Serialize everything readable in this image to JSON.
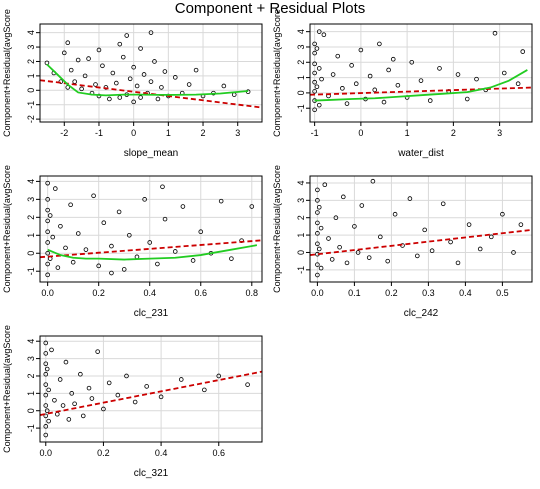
{
  "page": {
    "title": "Component + Residual Plots"
  },
  "style": {
    "background": "#ffffff",
    "panel_background": "#ffffff",
    "grid_color": "#d9d9d9",
    "point_color": "#000000",
    "fit_line_color": "#cc0000",
    "smooth_line_color": "#22cc22"
  },
  "chart_data": [
    {
      "type": "scatter",
      "xlabel": "slope_mean",
      "ylabel": "Component+Residual(avgScore",
      "xlim": [
        -2.7,
        3.7
      ],
      "ylim": [
        -2.2,
        4.6
      ],
      "xticks": [
        -2,
        -1,
        0,
        1,
        2,
        3
      ],
      "yticks": [
        -2,
        -1,
        0,
        1,
        2,
        3,
        4
      ],
      "grid": true,
      "fit_line": {
        "x": [
          -2.7,
          3.7
        ],
        "y": [
          0.7,
          -1.2
        ]
      },
      "smooth_line": {
        "x": [
          -2.5,
          -2.2,
          -1.9,
          -1.6,
          -1.2,
          -0.8,
          -0.3,
          0.2,
          0.7,
          1.2,
          1.8,
          2.5,
          3.3
        ],
        "y": [
          1.8,
          1.1,
          0.4,
          -0.15,
          -0.3,
          -0.35,
          -0.3,
          -0.3,
          -0.32,
          -0.32,
          -0.3,
          -0.22,
          -0.05
        ]
      },
      "points": [
        [
          -2.5,
          1.9
        ],
        [
          -2.3,
          1.2
        ],
        [
          -2.1,
          0.6
        ],
        [
          -2.0,
          2.6
        ],
        [
          -1.9,
          3.3
        ],
        [
          -1.9,
          0.2
        ],
        [
          -1.8,
          1.4
        ],
        [
          -1.7,
          0.6
        ],
        [
          -1.6,
          2.1
        ],
        [
          -1.5,
          0.1
        ],
        [
          -1.4,
          1.0
        ],
        [
          -1.2,
          -0.2
        ],
        [
          -1.1,
          0.4
        ],
        [
          -1.0,
          2.8
        ],
        [
          -1.0,
          -0.4
        ],
        [
          -0.9,
          1.7
        ],
        [
          -0.8,
          0.2
        ],
        [
          -0.7,
          -0.6
        ],
        [
          -0.6,
          1.2
        ],
        [
          -0.5,
          0.5
        ],
        [
          -0.4,
          -0.5
        ],
        [
          -0.3,
          2.3
        ],
        [
          -0.2,
          3.8
        ],
        [
          -0.2,
          -0.3
        ],
        [
          -0.1,
          0.8
        ],
        [
          0.0,
          1.6
        ],
        [
          0.0,
          -0.8
        ],
        [
          0.1,
          0.3
        ],
        [
          0.2,
          2.9
        ],
        [
          0.2,
          -0.5
        ],
        [
          0.3,
          1.1
        ],
        [
          0.4,
          -0.2
        ],
        [
          0.5,
          0.6
        ],
        [
          0.6,
          2.0
        ],
        [
          0.7,
          -0.6
        ],
        [
          0.8,
          0.2
        ],
        [
          0.9,
          1.3
        ],
        [
          1.0,
          -0.4
        ],
        [
          1.2,
          0.9
        ],
        [
          1.4,
          -0.2
        ],
        [
          1.6,
          0.4
        ],
        [
          1.8,
          1.4
        ],
        [
          2.0,
          -0.4
        ],
        [
          2.3,
          -0.2
        ],
        [
          2.6,
          0.3
        ],
        [
          2.9,
          -0.3
        ],
        [
          3.3,
          -0.1
        ],
        [
          -1.3,
          2.2
        ],
        [
          0.5,
          4.0
        ],
        [
          -0.4,
          3.2
        ]
      ]
    },
    {
      "type": "scatter",
      "xlabel": "water_dist",
      "ylabel": "Component+Residual(avgScore",
      "xlim": [
        -1.1,
        3.7
      ],
      "ylim": [
        -1.9,
        4.5
      ],
      "xticks": [
        -1,
        0,
        1,
        2,
        3
      ],
      "yticks": [
        -1,
        0,
        1,
        2,
        3,
        4
      ],
      "grid": true,
      "fit_line": {
        "x": [
          -1.1,
          3.7
        ],
        "y": [
          -0.12,
          0.35
        ]
      },
      "smooth_line": {
        "x": [
          -1.0,
          -0.6,
          -0.2,
          0.3,
          0.8,
          1.3,
          1.8,
          2.3,
          2.8,
          3.2,
          3.6
        ],
        "y": [
          -0.5,
          -0.45,
          -0.4,
          -0.35,
          -0.25,
          -0.15,
          -0.05,
          0.05,
          0.35,
          0.8,
          1.5
        ]
      },
      "points": [
        [
          -1.0,
          3.2
        ],
        [
          -1.0,
          2.6
        ],
        [
          -1.0,
          1.9
        ],
        [
          -1.0,
          1.3
        ],
        [
          -1.0,
          0.7
        ],
        [
          -1.0,
          0.1
        ],
        [
          -1.0,
          -0.5
        ],
        [
          -1.0,
          -1.1
        ],
        [
          -0.95,
          2.9
        ],
        [
          -0.95,
          0.4
        ],
        [
          -0.9,
          1.6
        ],
        [
          -0.9,
          -0.8
        ],
        [
          -0.85,
          0.9
        ],
        [
          -0.8,
          3.8
        ],
        [
          -0.7,
          -0.2
        ],
        [
          -0.6,
          1.2
        ],
        [
          -0.5,
          2.4
        ],
        [
          -0.4,
          0.3
        ],
        [
          -0.3,
          -0.7
        ],
        [
          -0.2,
          1.8
        ],
        [
          -0.1,
          0.6
        ],
        [
          0.0,
          2.8
        ],
        [
          0.1,
          -0.4
        ],
        [
          0.2,
          1.1
        ],
        [
          0.3,
          0.2
        ],
        [
          0.4,
          3.2
        ],
        [
          0.5,
          -0.6
        ],
        [
          0.6,
          1.5
        ],
        [
          0.8,
          0.5
        ],
        [
          1.0,
          -0.3
        ],
        [
          1.1,
          2.0
        ],
        [
          1.3,
          0.8
        ],
        [
          1.5,
          -0.5
        ],
        [
          1.7,
          1.6
        ],
        [
          1.9,
          0.1
        ],
        [
          2.1,
          1.2
        ],
        [
          2.3,
          -0.4
        ],
        [
          2.5,
          0.9
        ],
        [
          2.7,
          0.2
        ],
        [
          2.9,
          3.9
        ],
        [
          3.1,
          1.3
        ],
        [
          3.4,
          0.6
        ],
        [
          3.5,
          2.7
        ],
        [
          -0.9,
          4.0
        ],
        [
          0.7,
          2.2
        ]
      ]
    },
    {
      "type": "scatter",
      "xlabel": "clc_231",
      "ylabel": "Component+Residual(avgScore",
      "xlim": [
        -0.03,
        0.84
      ],
      "ylim": [
        -1.6,
        4.3
      ],
      "xticks": [
        0.0,
        0.2,
        0.4,
        0.6,
        0.8
      ],
      "yticks": [
        -1,
        0,
        1,
        2,
        3,
        4
      ],
      "grid": true,
      "fit_line": {
        "x": [
          -0.03,
          0.84
        ],
        "y": [
          -0.22,
          0.72
        ]
      },
      "smooth_line": {
        "x": [
          0.0,
          0.05,
          0.1,
          0.15,
          0.2,
          0.3,
          0.4,
          0.5,
          0.6,
          0.7,
          0.82
        ],
        "y": [
          0.2,
          -0.1,
          -0.25,
          -0.3,
          -0.3,
          -0.35,
          -0.3,
          -0.25,
          -0.1,
          0.15,
          0.45
        ]
      },
      "points": [
        [
          0.0,
          3.9
        ],
        [
          0.0,
          3.0
        ],
        [
          0.0,
          2.4
        ],
        [
          0.0,
          1.8
        ],
        [
          0.0,
          1.2
        ],
        [
          0.0,
          0.6
        ],
        [
          0.0,
          0.0
        ],
        [
          0.0,
          -0.6
        ],
        [
          0.0,
          -1.2
        ],
        [
          0.01,
          2.1
        ],
        [
          0.01,
          -0.3
        ],
        [
          0.02,
          0.9
        ],
        [
          0.03,
          3.6
        ],
        [
          0.04,
          -0.8
        ],
        [
          0.05,
          1.5
        ],
        [
          0.07,
          0.3
        ],
        [
          0.09,
          2.7
        ],
        [
          0.1,
          -0.5
        ],
        [
          0.12,
          1.1
        ],
        [
          0.15,
          0.2
        ],
        [
          0.18,
          3.2
        ],
        [
          0.2,
          -0.7
        ],
        [
          0.22,
          1.7
        ],
        [
          0.25,
          0.4
        ],
        [
          0.28,
          2.3
        ],
        [
          0.3,
          -0.9
        ],
        [
          0.32,
          1.0
        ],
        [
          0.35,
          -0.2
        ],
        [
          0.38,
          3.0
        ],
        [
          0.4,
          0.6
        ],
        [
          0.43,
          -0.6
        ],
        [
          0.46,
          1.9
        ],
        [
          0.5,
          0.1
        ],
        [
          0.53,
          2.6
        ],
        [
          0.57,
          -0.4
        ],
        [
          0.6,
          1.2
        ],
        [
          0.64,
          0.0
        ],
        [
          0.68,
          2.9
        ],
        [
          0.72,
          -0.3
        ],
        [
          0.76,
          0.7
        ],
        [
          0.8,
          2.6
        ],
        [
          0.45,
          3.7
        ],
        [
          0.25,
          -1.1
        ]
      ]
    },
    {
      "type": "scatter",
      "xlabel": "clc_242",
      "ylabel": "Component+Residual(avgScore",
      "xlim": [
        -0.02,
        0.58
      ],
      "ylim": [
        -1.7,
        4.4
      ],
      "xticks": [
        0.0,
        0.1,
        0.2,
        0.3,
        0.4,
        0.5
      ],
      "yticks": [
        -1,
        0,
        1,
        2,
        3,
        4
      ],
      "grid": true,
      "fit_line": {
        "x": [
          -0.02,
          0.58
        ],
        "y": [
          -0.15,
          1.3
        ]
      },
      "smooth_line": null,
      "points": [
        [
          0.0,
          3.6
        ],
        [
          0.0,
          3.0
        ],
        [
          0.0,
          2.3
        ],
        [
          0.0,
          1.7
        ],
        [
          0.0,
          1.1
        ],
        [
          0.0,
          0.5
        ],
        [
          0.0,
          -0.1
        ],
        [
          0.0,
          -0.7
        ],
        [
          0.0,
          -1.3
        ],
        [
          0.005,
          2.6
        ],
        [
          0.005,
          0.2
        ],
        [
          0.01,
          1.4
        ],
        [
          0.01,
          -0.9
        ],
        [
          0.02,
          3.9
        ],
        [
          0.03,
          0.8
        ],
        [
          0.04,
          -0.4
        ],
        [
          0.05,
          2.0
        ],
        [
          0.06,
          0.3
        ],
        [
          0.07,
          3.2
        ],
        [
          0.08,
          -0.6
        ],
        [
          0.1,
          1.5
        ],
        [
          0.11,
          0.0
        ],
        [
          0.12,
          2.7
        ],
        [
          0.14,
          -0.3
        ],
        [
          0.15,
          4.1
        ],
        [
          0.17,
          0.9
        ],
        [
          0.19,
          -0.5
        ],
        [
          0.21,
          2.2
        ],
        [
          0.23,
          0.4
        ],
        [
          0.25,
          3.1
        ],
        [
          0.27,
          -0.2
        ],
        [
          0.29,
          1.3
        ],
        [
          0.31,
          0.1
        ],
        [
          0.34,
          2.8
        ],
        [
          0.36,
          0.6
        ],
        [
          0.38,
          -0.6
        ],
        [
          0.41,
          1.6
        ],
        [
          0.44,
          0.2
        ],
        [
          0.47,
          0.9
        ],
        [
          0.5,
          2.2
        ],
        [
          0.53,
          0.0
        ],
        [
          0.55,
          1.6
        ]
      ]
    },
    {
      "type": "scatter",
      "xlabel": "clc_321",
      "ylabel": "Component+Residual(avgScore",
      "xlim": [
        -0.02,
        0.75
      ],
      "ylim": [
        -1.8,
        4.3
      ],
      "xticks": [
        0.0,
        0.2,
        0.4,
        0.6
      ],
      "yticks": [
        -1,
        0,
        1,
        2,
        3,
        4
      ],
      "grid": true,
      "fit_line": {
        "x": [
          -0.02,
          0.75
        ],
        "y": [
          -0.25,
          2.25
        ]
      },
      "smooth_line": null,
      "points": [
        [
          0.0,
          3.9
        ],
        [
          0.0,
          3.3
        ],
        [
          0.0,
          2.7
        ],
        [
          0.0,
          2.1
        ],
        [
          0.0,
          1.5
        ],
        [
          0.0,
          0.9
        ],
        [
          0.0,
          0.3
        ],
        [
          0.0,
          -0.3
        ],
        [
          0.0,
          -0.9
        ],
        [
          0.0,
          -1.4
        ],
        [
          0.005,
          2.4
        ],
        [
          0.005,
          0.0
        ],
        [
          0.01,
          1.2
        ],
        [
          0.01,
          -0.6
        ],
        [
          0.02,
          3.5
        ],
        [
          0.03,
          0.6
        ],
        [
          0.04,
          -0.2
        ],
        [
          0.05,
          1.8
        ],
        [
          0.06,
          0.3
        ],
        [
          0.07,
          2.8
        ],
        [
          0.08,
          -0.5
        ],
        [
          0.09,
          1.0
        ],
        [
          0.1,
          0.4
        ],
        [
          0.12,
          2.1
        ],
        [
          0.13,
          -0.3
        ],
        [
          0.15,
          1.3
        ],
        [
          0.16,
          0.7
        ],
        [
          0.18,
          3.4
        ],
        [
          0.2,
          0.1
        ],
        [
          0.22,
          1.6
        ],
        [
          0.25,
          0.9
        ],
        [
          0.28,
          2.0
        ],
        [
          0.31,
          0.5
        ],
        [
          0.35,
          1.4
        ],
        [
          0.4,
          0.8
        ],
        [
          0.47,
          1.8
        ],
        [
          0.55,
          1.2
        ],
        [
          0.6,
          2.0
        ],
        [
          0.7,
          1.5
        ]
      ]
    }
  ]
}
